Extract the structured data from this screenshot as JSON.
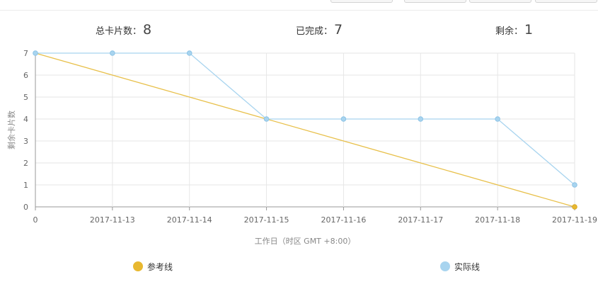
{
  "summary": {
    "total_label": "总卡片数：",
    "total_value": "8",
    "done_label": "已完成：",
    "done_value": "7",
    "remaining_label": "剩余：",
    "remaining_value": "1"
  },
  "chart_data": {
    "type": "line",
    "categories": [
      "0",
      "2017-11-13",
      "2017-11-14",
      "2017-11-15",
      "2017-11-16",
      "2017-11-17",
      "2017-11-18",
      "2017-11-19"
    ],
    "series": [
      {
        "name": "参考线",
        "values": [
          7,
          6,
          5,
          4,
          3,
          2,
          1,
          0
        ],
        "color": "#e8c04a",
        "marker": "last"
      },
      {
        "name": "实际线",
        "values": [
          7,
          7,
          7,
          4,
          4,
          4,
          4,
          1
        ],
        "color": "#a8d4ef",
        "marker": "all"
      }
    ],
    "ylim": [
      0,
      7
    ],
    "yticks": [
      0,
      1,
      2,
      3,
      4,
      5,
      6,
      7
    ],
    "xlabel": "工作日（时区 GMT +8:00）",
    "ylabel": "剩余卡片数",
    "grid": true,
    "legend_position": "bottom"
  },
  "legend": [
    {
      "label": "参考线",
      "color": "#e8b830"
    },
    {
      "label": "实际线",
      "color": "#a8d4ef"
    }
  ]
}
